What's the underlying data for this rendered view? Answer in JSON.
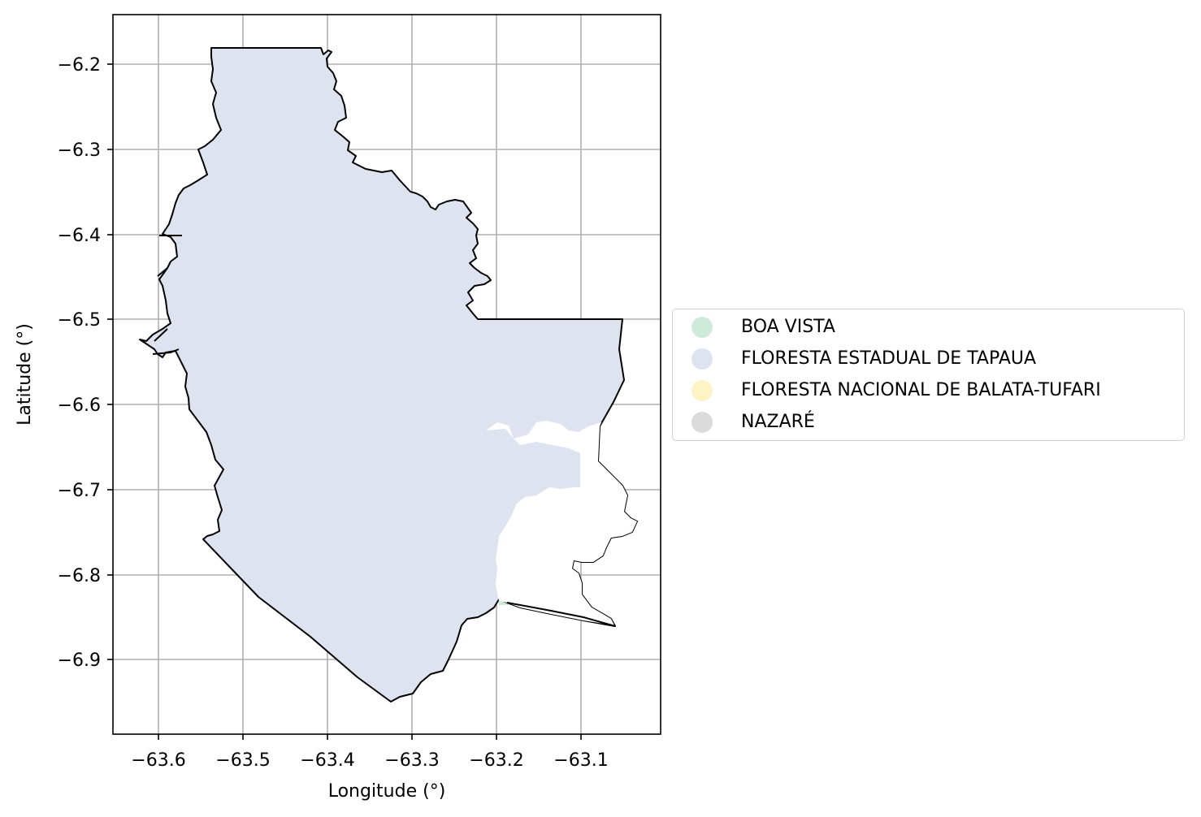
{
  "map": {
    "x_ticks": [
      "−63.6",
      "−63.5",
      "−63.4",
      "−63.3",
      "−63.2",
      "−63.1"
    ],
    "y_ticks": [
      "−6.2",
      "−6.3",
      "−6.4",
      "−6.5",
      "−6.6",
      "−6.7",
      "−6.8",
      "−6.9"
    ],
    "xlabel": "Longitude (°)",
    "ylabel": "Latitude (°)",
    "grid": true,
    "legend_position": "right-center",
    "x_range": [
      -63.65,
      -63.0
    ],
    "y_range": [
      -6.985,
      -6.14
    ]
  },
  "legend": {
    "items": [
      {
        "label": "BOA VISTA",
        "color": "#cdeadb"
      },
      {
        "label": "FLORESTA ESTADUAL DE TAPAUA",
        "color": "#dfe3f0"
      },
      {
        "label": "FLORESTA NACIONAL DE BALATA-TUFARI",
        "color": "#fdf3c4"
      },
      {
        "label": "NAZARÉ",
        "color": "#dadada"
      }
    ]
  },
  "colors": {
    "tapaua_fill": "#dfe3f0",
    "boa_vista_fill": "#cdeadb",
    "boundary": "#000000",
    "grid": "#b0b0b0"
  }
}
